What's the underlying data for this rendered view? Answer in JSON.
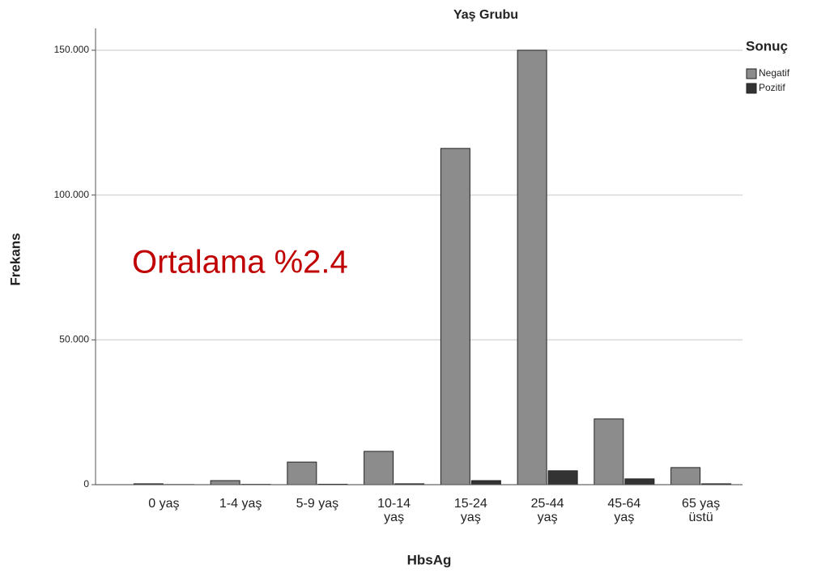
{
  "chart_data": {
    "type": "bar",
    "title": "Yaş Grubu",
    "x_label": "HbsAg",
    "y_label": "Frekans",
    "annotation": "Ortalama %2.4",
    "legend_title": "Sonuç",
    "legend_position": "top-right",
    "categories": [
      "0 yaş",
      "1-4 yaş",
      "5-9 yaş",
      "10-14\nyaş",
      "15-24\nyaş",
      "25-44\nyaş",
      "45-64\nyaş",
      "65 yaş\nüstü"
    ],
    "series": [
      {
        "name": "Negatif",
        "color": "#8c8c8c",
        "values": [
          300,
          1400,
          7800,
          11500,
          116100,
          150000,
          22700,
          5900
        ]
      },
      {
        "name": "Pozitif",
        "color": "#333333",
        "values": [
          50,
          100,
          150,
          300,
          1400,
          4800,
          2000,
          300
        ]
      }
    ],
    "ylim": [
      0,
      150000
    ],
    "yticks": [
      0,
      {
        "value": 50000,
        "label": "50.000"
      },
      {
        "value": 100000,
        "label": "100.000"
      },
      {
        "value": 150000,
        "label": "150.000"
      }
    ],
    "grid": true
  }
}
